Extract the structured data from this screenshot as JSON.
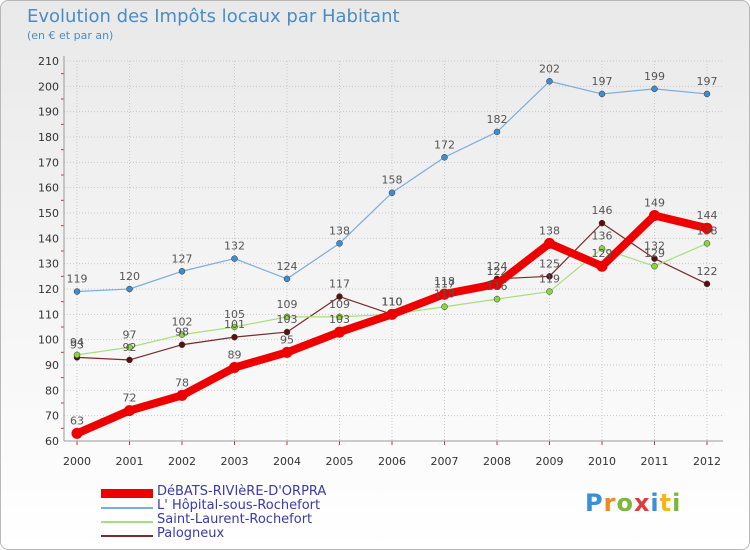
{
  "header": {
    "title": "Evolution des Impôts locaux par Habitant",
    "subtitle": "(en € et par an)"
  },
  "logo": {
    "text": "Proxiti"
  },
  "colors": {
    "grid": "#c8c8c8",
    "axis": "#999999",
    "tick_text": "#333333",
    "label_text": "#555555"
  },
  "chart_data": {
    "type": "line",
    "title": "Evolution des Impôts locaux par Habitant",
    "subtitle": "(en € et par an)",
    "xlabel": "",
    "ylabel": "",
    "x": [
      "2000",
      "2001",
      "2002",
      "2003",
      "2004",
      "2005",
      "2006",
      "2007",
      "2008",
      "2009",
      "2010",
      "2011",
      "2012"
    ],
    "ylim": [
      60,
      210
    ],
    "yticks": [
      60,
      70,
      80,
      90,
      100,
      110,
      120,
      130,
      140,
      150,
      160,
      170,
      180,
      190,
      200,
      210
    ],
    "grid": true,
    "legend_position": "bottom-left",
    "series": [
      {
        "name": "DéBATS-RIVIèRE-D'ORPRA",
        "color": "#ee0000",
        "marker_color": "#ee0000",
        "style": "thick",
        "values": [
          63,
          72,
          78,
          89,
          95,
          103,
          110,
          118,
          122,
          138,
          129,
          149,
          144
        ]
      },
      {
        "name": "L' Hôpital-sous-Rochefort",
        "color": "#7aaddc",
        "marker_color": "#3f8ccf",
        "style": "thin",
        "values": [
          119,
          120,
          127,
          132,
          124,
          138,
          158,
          172,
          182,
          202,
          197,
          199,
          197
        ]
      },
      {
        "name": "Saint-Laurent-Rochefort",
        "color": "#a6e07a",
        "marker_color": "#8ad43c",
        "style": "thin",
        "values": [
          94,
          97,
          102,
          105,
          109,
          109,
          110,
          113,
          116,
          119,
          136,
          129,
          138
        ]
      },
      {
        "name": "Palogneux",
        "color": "#7a2a2a",
        "marker_color": "#5a1010",
        "style": "thin",
        "values": [
          93,
          92,
          98,
          101,
          103,
          117,
          110,
          117,
          124,
          125,
          146,
          132,
          122
        ]
      }
    ]
  }
}
